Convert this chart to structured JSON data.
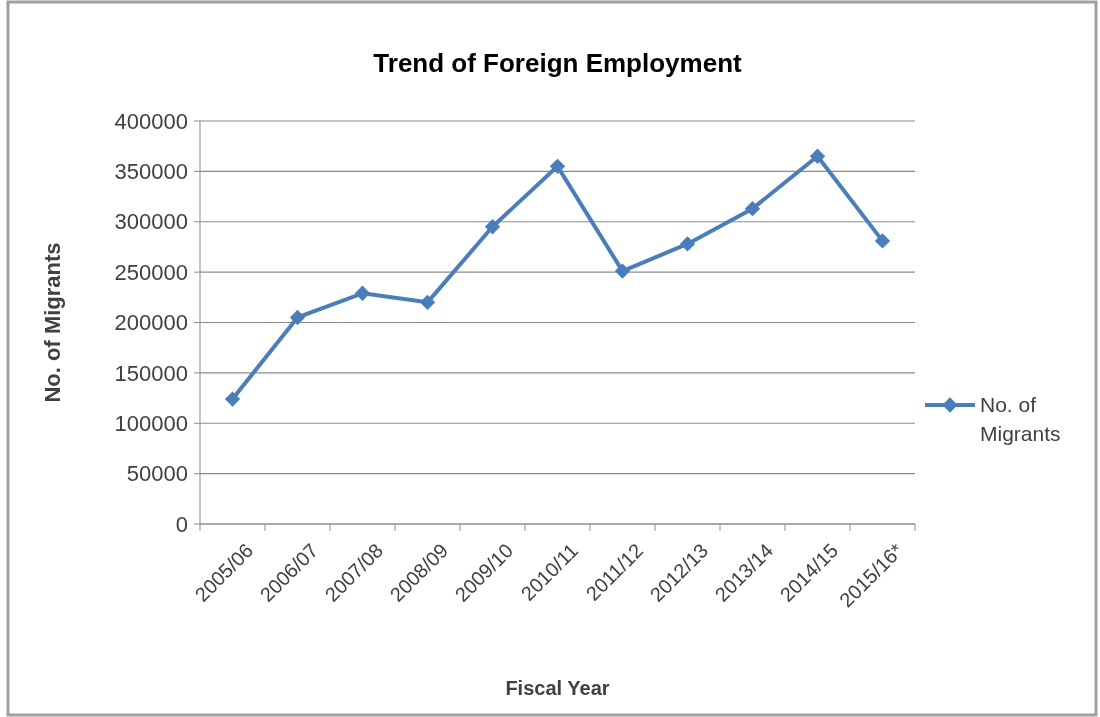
{
  "chart_data": {
    "type": "line",
    "title": "Trend of Foreign Employment",
    "xlabel": "Fiscal Year",
    "ylabel": "No. of Migrants",
    "categories": [
      "2005/06",
      "2006/07",
      "2007/08",
      "2008/09",
      "2009/10",
      "2010/11",
      "2011/12",
      "2012/13",
      "2013/14",
      "2014/15",
      "2015/16*"
    ],
    "series": [
      {
        "name": "No. of Migrants",
        "color": "#4a7ebb",
        "values": [
          124000,
          205000,
          229000,
          220000,
          295000,
          355000,
          251000,
          278000,
          313000,
          365000,
          281000
        ]
      }
    ],
    "ylim": [
      0,
      400000
    ],
    "yticks": [
      0,
      50000,
      100000,
      150000,
      200000,
      250000,
      300000,
      350000,
      400000
    ],
    "grid": "y",
    "legend": "right",
    "marker": "diamond",
    "line_style": "solid"
  }
}
